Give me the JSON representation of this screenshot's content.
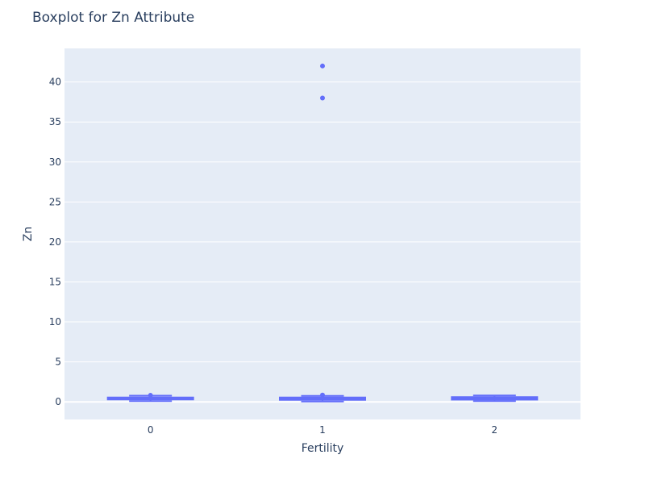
{
  "chart_data": {
    "type": "box",
    "title": "Boxplot for Zn Attribute",
    "xlabel": "Fertility",
    "ylabel": "Zn",
    "categories": [
      "0",
      "1",
      "2"
    ],
    "ylim": [
      -2.2,
      44.2
    ],
    "yticks": [
      0,
      5,
      10,
      15,
      20,
      25,
      30,
      35,
      40
    ],
    "grid": true,
    "legend": false,
    "colors": {
      "plot_bg": "#e5ecf6",
      "box": "#636efa",
      "grid": "#ffffff",
      "text": "#2a3f5f"
    },
    "boxes": [
      {
        "category": "0",
        "min": 0.1,
        "q1": 0.3,
        "median": 0.42,
        "q3": 0.55,
        "max": 0.78,
        "outliers": [
          0.82
        ]
      },
      {
        "category": "1",
        "min": 0.05,
        "q1": 0.25,
        "median": 0.4,
        "q3": 0.55,
        "max": 0.75,
        "outliers": [
          0.85,
          38,
          42
        ]
      },
      {
        "category": "2",
        "min": 0.1,
        "q1": 0.28,
        "median": 0.45,
        "q3": 0.6,
        "max": 0.8,
        "outliers": []
      }
    ]
  }
}
